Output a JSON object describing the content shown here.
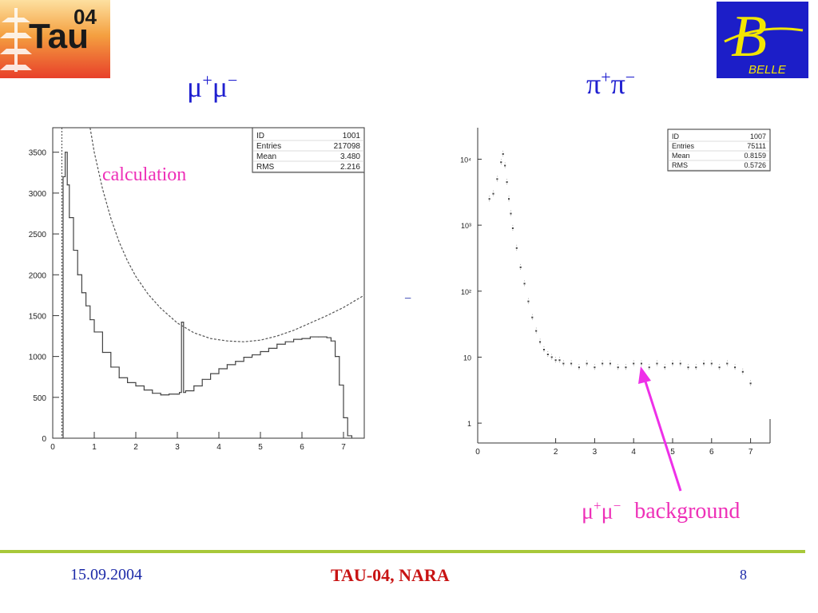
{
  "slide": {
    "title_left": {
      "base1": "μ",
      "sup1": "+",
      "base2": "μ",
      "sup2": "−"
    },
    "title_right": {
      "base1": "π",
      "sup1": "+",
      "base2": "π",
      "sup2": "−"
    },
    "calculation_label": "calculation",
    "background_label": {
      "prefix": "μ",
      "sup1": "+",
      "mid": "μ",
      "sup2": "−",
      "word": "background"
    },
    "stray_mark": "−",
    "footer_date": "15.09.2004",
    "footer_center": "TAU-04, NARA",
    "page_number": "8",
    "logo_tau_text": "Tau",
    "logo_tau_year": "04",
    "logo_belle_letter": "B",
    "logo_belle_word": "BELLE",
    "colors": {
      "title": "#1f1fd0",
      "annotation": "#ee30b8",
      "footer_line": "#a8c83a",
      "footer_center": "#c81414",
      "footer_text": "#1c2aa8"
    }
  },
  "chart_data": [
    {
      "type": "line",
      "stats": {
        "ID": "1001",
        "Entries": "217098",
        "Mean": "3.480",
        "RMS": "2.216"
      },
      "xlim": [
        0,
        7.5
      ],
      "ylim": [
        0,
        3800
      ],
      "xticks": [
        0,
        1,
        2,
        3,
        4,
        5,
        6,
        7
      ],
      "yticks": [
        0,
        500,
        1000,
        1500,
        2000,
        2500,
        3000,
        3500
      ],
      "series": [
        {
          "role": "histogram",
          "x": [
            0.25,
            0.3,
            0.35,
            0.4,
            0.5,
            0.6,
            0.7,
            0.8,
            0.9,
            1.0,
            1.2,
            1.4,
            1.6,
            1.8,
            2.0,
            2.2,
            2.4,
            2.6,
            2.8,
            3.0,
            3.05,
            3.1,
            3.15,
            3.2,
            3.4,
            3.6,
            3.8,
            4.0,
            4.2,
            4.4,
            4.6,
            4.8,
            5.0,
            5.2,
            5.4,
            5.6,
            5.8,
            6.0,
            6.2,
            6.4,
            6.6,
            6.7,
            6.8,
            6.9,
            7.0,
            7.1,
            7.2
          ],
          "y": [
            3200,
            3500,
            3100,
            2700,
            2300,
            2000,
            1780,
            1620,
            1450,
            1300,
            1050,
            870,
            740,
            680,
            640,
            590,
            550,
            530,
            540,
            540,
            560,
            1420,
            560,
            580,
            640,
            720,
            790,
            850,
            900,
            940,
            990,
            1020,
            1060,
            1100,
            1150,
            1180,
            1210,
            1220,
            1240,
            1240,
            1230,
            1190,
            1000,
            650,
            250,
            30,
            0
          ]
        },
        {
          "role": "calculation",
          "x": [
            0.9,
            1.0,
            1.2,
            1.4,
            1.6,
            1.8,
            2.0,
            2.3,
            2.6,
            3.0,
            3.4,
            3.8,
            4.2,
            4.6,
            5.0,
            5.4,
            5.8,
            6.2,
            6.6,
            7.0,
            7.5
          ],
          "y": [
            3800,
            3500,
            3050,
            2690,
            2400,
            2170,
            1980,
            1760,
            1590,
            1410,
            1290,
            1220,
            1190,
            1180,
            1200,
            1250,
            1320,
            1410,
            1500,
            1600,
            1750
          ]
        }
      ]
    },
    {
      "type": "scatter",
      "stats": {
        "ID": "1007",
        "Entries": "75111",
        "Mean": "0.8159",
        "RMS": "0.5726"
      },
      "log_y": true,
      "xlim": [
        0,
        7.5
      ],
      "ylim": [
        0.5,
        30000
      ],
      "xticks": [
        0,
        2,
        3,
        4,
        5,
        6,
        7
      ],
      "yticks": [
        1,
        10,
        100,
        1000,
        10000
      ],
      "ytick_labels": [
        "1",
        "10",
        "10²",
        "10³",
        "10⁴"
      ],
      "series": [
        {
          "role": "pi-pi spectrum",
          "x": [
            0.3,
            0.4,
            0.5,
            0.6,
            0.65,
            0.7,
            0.75,
            0.8,
            0.85,
            0.9,
            1.0,
            1.1,
            1.2,
            1.3,
            1.4,
            1.5,
            1.6,
            1.7,
            1.8,
            1.9,
            2.0,
            2.1,
            2.2,
            2.4,
            2.6,
            2.8,
            3.0,
            3.2,
            3.4,
            3.6,
            3.8,
            4.0,
            4.2,
            4.4,
            4.6,
            4.8,
            5.0,
            5.2,
            5.4,
            5.6,
            5.8,
            6.0,
            6.2,
            6.4,
            6.6,
            6.8,
            7.0
          ],
          "y": [
            2500,
            3000,
            5000,
            9000,
            12000,
            8000,
            4500,
            2500,
            1500,
            900,
            450,
            230,
            130,
            70,
            40,
            25,
            17,
            13,
            11,
            10,
            9,
            9,
            8,
            8,
            7,
            8,
            7,
            8,
            8,
            7,
            7,
            8,
            8,
            7,
            8,
            7,
            8,
            8,
            7,
            7,
            8,
            8,
            7,
            8,
            7,
            6,
            4
          ]
        }
      ]
    }
  ]
}
